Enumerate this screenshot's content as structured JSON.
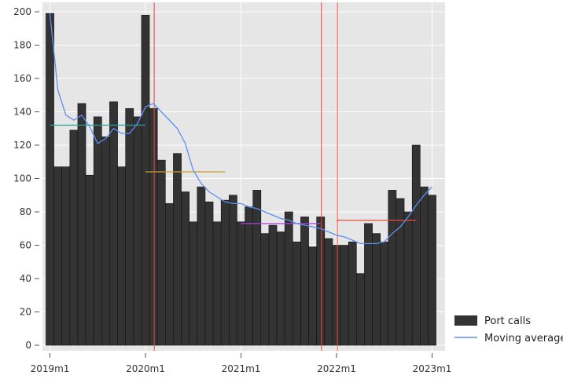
{
  "chart_data": {
    "type": "bar",
    "x": [
      "2019m1",
      "2019m2",
      "2019m3",
      "2019m4",
      "2019m5",
      "2019m6",
      "2019m7",
      "2019m8",
      "2019m9",
      "2019m10",
      "2019m11",
      "2019m12",
      "2020m1",
      "2020m2",
      "2020m3",
      "2020m4",
      "2020m5",
      "2020m6",
      "2020m7",
      "2020m8",
      "2020m9",
      "2020m10",
      "2020m11",
      "2020m12",
      "2021m1",
      "2021m2",
      "2021m3",
      "2021m4",
      "2021m5",
      "2021m6",
      "2021m7",
      "2021m8",
      "2021m9",
      "2021m10",
      "2021m11",
      "2021m12",
      "2022m1",
      "2022m2",
      "2022m3",
      "2022m4",
      "2022m5",
      "2022m6",
      "2022m7",
      "2022m8",
      "2022m9",
      "2022m10",
      "2022m11",
      "2022m12",
      "2023m1"
    ],
    "xticks": [
      "2019m1",
      "2020m1",
      "2021m1",
      "2022m1",
      "2023m1"
    ],
    "ylim": [
      0,
      200
    ],
    "yticks": [
      0,
      20,
      40,
      60,
      80,
      100,
      120,
      140,
      160,
      180,
      200
    ],
    "grid": true,
    "legend_position": "bottom-right",
    "series": [
      {
        "name": "Port calls",
        "kind": "bar",
        "color": "#333333",
        "values": [
          199,
          107,
          107,
          129,
          145,
          102,
          137,
          125,
          146,
          107,
          142,
          137,
          198,
          142,
          111,
          85,
          115,
          92,
          74,
          95,
          86,
          74,
          87,
          90,
          74,
          83,
          93,
          67,
          72,
          68,
          80,
          62,
          77,
          59,
          77,
          64,
          60,
          60,
          62,
          43,
          73,
          67,
          62,
          93,
          88,
          80,
          120,
          95,
          90
        ]
      },
      {
        "name": "Moving average",
        "kind": "line",
        "color": "#5b8ff0",
        "values": [
          199,
          153,
          138,
          135,
          138,
          131,
          121,
          124,
          130,
          127,
          127,
          133,
          143,
          145,
          140,
          135,
          130,
          121,
          105,
          97,
          92,
          89,
          86,
          85,
          85,
          83,
          82,
          80,
          78,
          76,
          75,
          73,
          72,
          71,
          70,
          68,
          66,
          65,
          63,
          61,
          61,
          61,
          62,
          67,
          71,
          77,
          84,
          90,
          95
        ]
      }
    ],
    "reference_lines": {
      "vertical": {
        "color": "#e8473f",
        "x": [
          "2020m2",
          "2021m11",
          "2022m1"
        ]
      },
      "horizontal_segments": [
        {
          "y": 132,
          "from": "2019m1",
          "to": "2020m1",
          "color": "#2aa198"
        },
        {
          "y": 104,
          "from": "2020m1",
          "to": "2020m11",
          "color": "#c8a02a"
        },
        {
          "y": 73,
          "from": "2021m1",
          "to": "2021m11",
          "color": "#b040e0"
        },
        {
          "y": 75,
          "from": "2022m1",
          "to": "2022m11",
          "color": "#e8473f"
        }
      ]
    },
    "legend": {
      "bar_label": "Port calls",
      "line_label": "Moving average"
    }
  }
}
